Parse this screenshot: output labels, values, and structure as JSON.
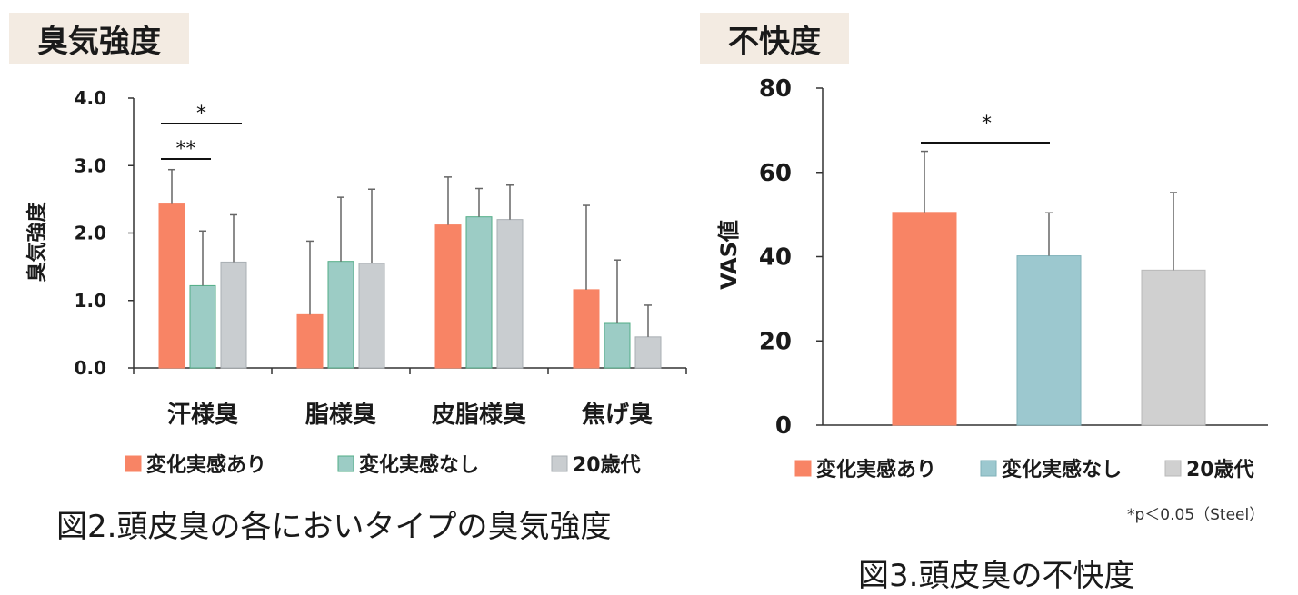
{
  "panel1": {
    "tag": "臭気強度",
    "caption": "図2.頭皮臭の各においタイプの臭気強度"
  },
  "panel2": {
    "tag": "不快度",
    "caption": "図3.頭皮臭の不快度",
    "significance_note": "*p＜0.05（Steel）"
  },
  "colors": {
    "あり": "#f88465",
    "なし": "#9cccc5",
    "なし_stroke": "#52ad86",
    "age20": "#c9cdd0",
    "fig3_なし": "#9cc8cf",
    "fig3_age20": "#d0d0d0",
    "tag_bg": "#f3ebe2"
  },
  "chart_data": [
    {
      "type": "bar",
      "title": "臭気強度",
      "ylabel": "臭気強度",
      "xlabel": "",
      "ylim": [
        0,
        4
      ],
      "yticks": [
        "0.0",
        "1.0",
        "2.0",
        "3.0",
        "4.0"
      ],
      "categories": [
        "汗様臭",
        "脂様臭",
        "皮脂様臭",
        "焦げ臭"
      ],
      "series": [
        {
          "name": "変化実感あり",
          "values": [
            2.43,
            0.79,
            2.12,
            1.16
          ],
          "errors": [
            0.51,
            1.09,
            0.71,
            1.25
          ]
        },
        {
          "name": "変化実感なし",
          "values": [
            1.22,
            1.58,
            2.24,
            0.66
          ],
          "errors": [
            0.81,
            0.95,
            0.42,
            0.94
          ]
        },
        {
          "name": "20歳代",
          "values": [
            1.57,
            1.55,
            2.2,
            0.46
          ],
          "errors": [
            0.7,
            1.1,
            0.51,
            0.47
          ]
        }
      ],
      "annotations": [
        {
          "category": "汗様臭",
          "from": "変化実感あり",
          "to": "20歳代",
          "label": "*"
        },
        {
          "category": "汗様臭",
          "from": "変化実感あり",
          "to": "変化実感なし",
          "label": "**"
        }
      ],
      "legend": "bottom"
    },
    {
      "type": "bar",
      "title": "不快度",
      "ylabel": "VAS値",
      "xlabel": "",
      "ylim": [
        0,
        80
      ],
      "yticks": [
        "0",
        "20",
        "40",
        "60",
        "80"
      ],
      "categories": [
        "変化実感あり",
        "変化実感なし",
        "20歳代"
      ],
      "values": [
        50.5,
        40.2,
        36.8
      ],
      "errors": [
        14.5,
        10.2,
        18.4
      ],
      "annotations": [
        {
          "from": "変化実感あり",
          "to": "変化実感なし",
          "label": "*"
        }
      ],
      "legend": "bottom"
    }
  ]
}
